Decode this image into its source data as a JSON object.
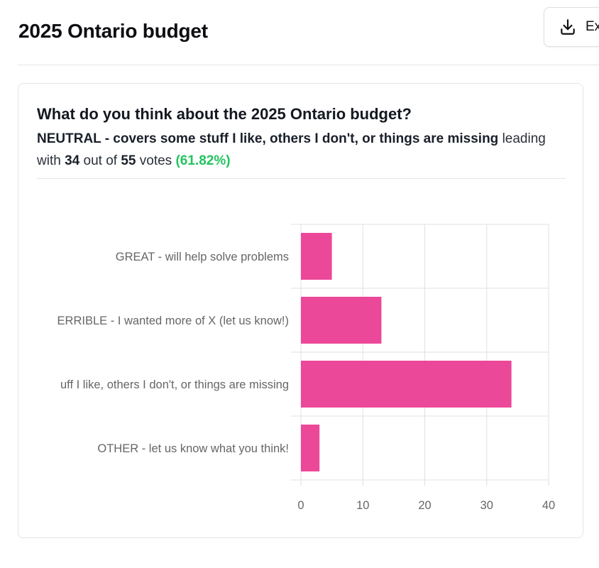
{
  "header": {
    "title": "2025 Ontario budget",
    "export_label": "Ex"
  },
  "poll": {
    "question": "What do you think about the 2025 Ontario budget?",
    "leading_option": "NEUTRAL - covers some stuff I like, others I don't, or things are missing",
    "leading_with_text": "leading with",
    "leading_votes": "34",
    "out_of_text": "out of",
    "total_votes": "55",
    "votes_text": "votes",
    "leading_percent": "(61.82%)"
  },
  "colors": {
    "bar": "#ec4899",
    "percent_accent": "#22c55e"
  },
  "chart_data": {
    "type": "bar",
    "orientation": "horizontal",
    "categories": [
      "GREAT - will help solve problems",
      "TERRIBLE - I wanted more of X (let us know!)",
      "NEUTRAL - covers some stuff I like, others I don't, or things are missing",
      "OTHER - let us know what you think!"
    ],
    "visible_category_labels": [
      "GREAT - will help solve problems",
      "ERRIBLE - I wanted more of X (let us know!)",
      "uff I like, others I don't, or things are missing",
      "OTHER - let us know what you think!"
    ],
    "values": [
      5,
      13,
      34,
      3
    ],
    "x_ticks": [
      "0",
      "10",
      "20",
      "30",
      "40"
    ],
    "xlim": [
      0,
      40
    ],
    "grid": true,
    "title": "",
    "xlabel": "",
    "ylabel": ""
  }
}
